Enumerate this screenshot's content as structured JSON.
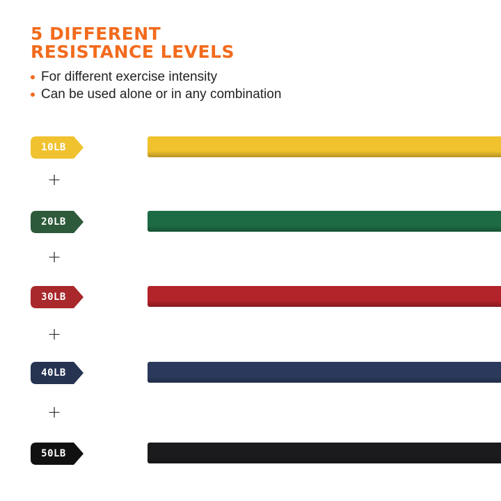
{
  "title_lines": [
    "5 DIFFERENT",
    "RESISTANCE LEVELS"
  ],
  "bullets": [
    "For different exercise intensity",
    "Can be used alone or in any combination"
  ],
  "levels": [
    {
      "label": "10LB",
      "tag_color": "#f0c230",
      "band_color": "#f0c22e"
    },
    {
      "label": "20LB",
      "tag_color": "#2d5a3a",
      "band_color": "#1d6b45"
    },
    {
      "label": "30LB",
      "tag_color": "#a8282b",
      "band_color": "#b3232a"
    },
    {
      "label": "40LB",
      "tag_color": "#263452",
      "band_color": "#2b3a5c"
    },
    {
      "label": "50LB",
      "tag_color": "#111111",
      "band_color": "#1b1b1e"
    }
  ],
  "plus_symbol": "+",
  "accent_color": "#f26b1d"
}
